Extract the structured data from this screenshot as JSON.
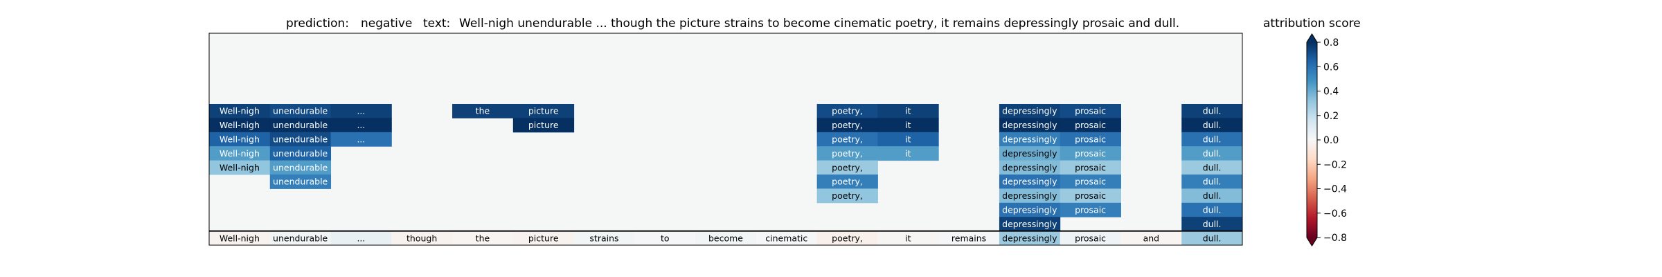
{
  "title": {
    "prediction_label": "prediction:",
    "prediction": "negative",
    "text_label": "text:",
    "text": "Well-nigh unendurable ... though the picture strains to become cinematic poetry, it remains depressingly prosaic and dull."
  },
  "colorbar": {
    "label": "attribution score",
    "ticks": [
      "0.8",
      "0.6",
      "0.4",
      "0.2",
      "0.0",
      "−0.2",
      "−0.4",
      "−0.6",
      "−0.8"
    ],
    "tick_values": [
      0.8,
      0.6,
      0.4,
      0.2,
      0.0,
      -0.2,
      -0.4,
      -0.6,
      -0.8
    ],
    "range": [
      -0.8,
      0.8
    ],
    "cmap": "RdBu"
  },
  "chart_data": {
    "type": "heatmap",
    "tokens": [
      "Well-nigh",
      "unendurable",
      "...",
      "though",
      "the",
      "picture",
      "strains",
      "to",
      "become",
      "cinematic",
      "poetry,",
      "it",
      "remains",
      "depressingly",
      "prosaic",
      "and",
      "dull."
    ],
    "levels": 15,
    "bottom_row_scores": [
      -0.03,
      0.02,
      0.06,
      -0.03,
      -0.02,
      -0.03,
      0.02,
      0.01,
      0.02,
      0.01,
      -0.04,
      -0.01,
      0.01,
      0.3,
      0.04,
      -0.02,
      0.3
    ],
    "cells": [
      {
        "row": 9,
        "col": 0,
        "value": 0.75
      },
      {
        "row": 9,
        "col": 1,
        "value": 0.72
      },
      {
        "row": 9,
        "col": 2,
        "value": 0.75
      },
      {
        "row": 9,
        "col": 4,
        "value": 0.75
      },
      {
        "row": 9,
        "col": 5,
        "value": 0.75
      },
      {
        "row": 9,
        "col": 10,
        "value": 0.72
      },
      {
        "row": 9,
        "col": 11,
        "value": 0.75
      },
      {
        "row": 9,
        "col": 13,
        "value": 0.75
      },
      {
        "row": 9,
        "col": 14,
        "value": 0.72
      },
      {
        "row": 9,
        "col": 16,
        "value": 0.75
      },
      {
        "row": 8,
        "col": 0,
        "value": 0.8
      },
      {
        "row": 8,
        "col": 1,
        "value": 0.85
      },
      {
        "row": 8,
        "col": 2,
        "value": 0.8
      },
      {
        "row": 8,
        "col": 5,
        "value": 0.85
      },
      {
        "row": 8,
        "col": 10,
        "value": 0.85
      },
      {
        "row": 8,
        "col": 11,
        "value": 0.85
      },
      {
        "row": 8,
        "col": 13,
        "value": 0.8
      },
      {
        "row": 8,
        "col": 14,
        "value": 0.8
      },
      {
        "row": 8,
        "col": 16,
        "value": 0.85
      },
      {
        "row": 7,
        "col": 0,
        "value": 0.65
      },
      {
        "row": 7,
        "col": 1,
        "value": 0.72
      },
      {
        "row": 7,
        "col": 2,
        "value": 0.6
      },
      {
        "row": 7,
        "col": 10,
        "value": 0.6
      },
      {
        "row": 7,
        "col": 11,
        "value": 0.65
      },
      {
        "row": 7,
        "col": 13,
        "value": 0.55
      },
      {
        "row": 7,
        "col": 14,
        "value": 0.6
      },
      {
        "row": 7,
        "col": 16,
        "value": 0.6
      },
      {
        "row": 6,
        "col": 0,
        "value": 0.45
      },
      {
        "row": 6,
        "col": 1,
        "value": 0.65
      },
      {
        "row": 6,
        "col": 10,
        "value": 0.45
      },
      {
        "row": 6,
        "col": 11,
        "value": 0.45
      },
      {
        "row": 6,
        "col": 13,
        "value": 0.4
      },
      {
        "row": 6,
        "col": 14,
        "value": 0.45
      },
      {
        "row": 6,
        "col": 16,
        "value": 0.45
      },
      {
        "row": 5,
        "col": 0,
        "value": 0.32
      },
      {
        "row": 5,
        "col": 1,
        "value": 0.45
      },
      {
        "row": 5,
        "col": 10,
        "value": 0.3
      },
      {
        "row": 5,
        "col": 13,
        "value": 0.35
      },
      {
        "row": 5,
        "col": 14,
        "value": 0.3
      },
      {
        "row": 5,
        "col": 16,
        "value": 0.3
      },
      {
        "row": 4,
        "col": 1,
        "value": 0.55
      },
      {
        "row": 4,
        "col": 10,
        "value": 0.55
      },
      {
        "row": 4,
        "col": 13,
        "value": 0.6
      },
      {
        "row": 4,
        "col": 14,
        "value": 0.55
      },
      {
        "row": 4,
        "col": 16,
        "value": 0.55
      },
      {
        "row": 3,
        "col": 10,
        "value": 0.32
      },
      {
        "row": 3,
        "col": 13,
        "value": 0.35
      },
      {
        "row": 3,
        "col": 14,
        "value": 0.3
      },
      {
        "row": 3,
        "col": 16,
        "value": 0.35
      },
      {
        "row": 2,
        "col": 13,
        "value": 0.6
      },
      {
        "row": 2,
        "col": 14,
        "value": 0.55
      },
      {
        "row": 2,
        "col": 16,
        "value": 0.6
      },
      {
        "row": 1,
        "col": 13,
        "value": 0.75
      },
      {
        "row": 1,
        "col": 16,
        "value": 0.75
      }
    ]
  }
}
